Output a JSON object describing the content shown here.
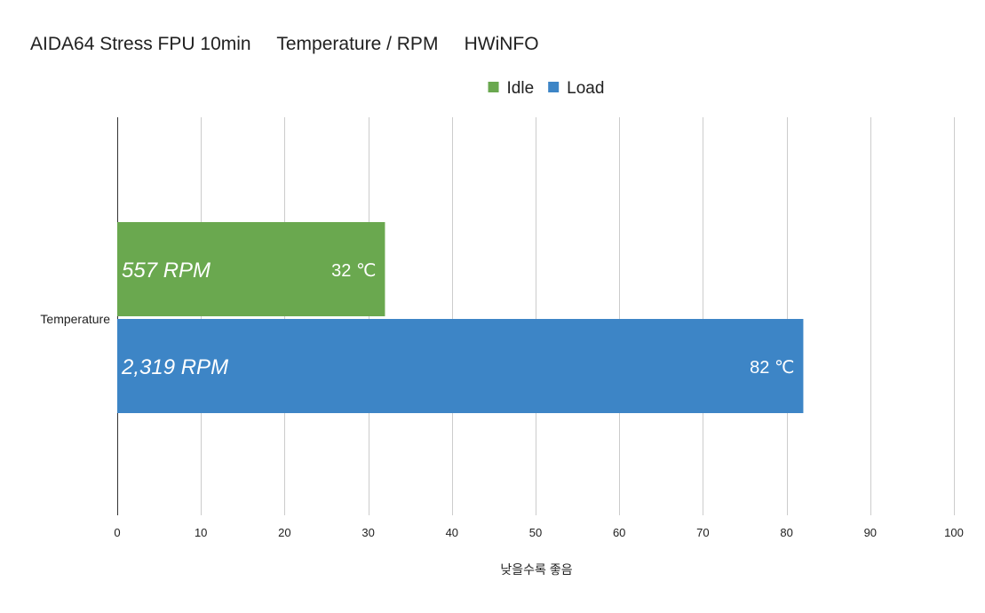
{
  "chart_data": {
    "type": "bar",
    "orientation": "horizontal",
    "title": "AIDA64 Stress FPU 10min     Temperature / RPM     HWiNFO",
    "categories": [
      "Temperature"
    ],
    "series": [
      {
        "name": "Idle",
        "color": "#6aa84f",
        "values": [
          32
        ],
        "value_label": "32 ℃",
        "annotation": "557 RPM"
      },
      {
        "name": "Load",
        "color": "#3d85c6",
        "values": [
          82
        ],
        "value_label": "82 ℃",
        "annotation": "2,319 RPM"
      }
    ],
    "xlabel": "낮을수록 좋음",
    "xlim": [
      0,
      100
    ],
    "xticks": [
      0,
      10,
      20,
      30,
      40,
      50,
      60,
      70,
      80,
      90,
      100
    ],
    "grid": true,
    "legend_position": "top"
  }
}
